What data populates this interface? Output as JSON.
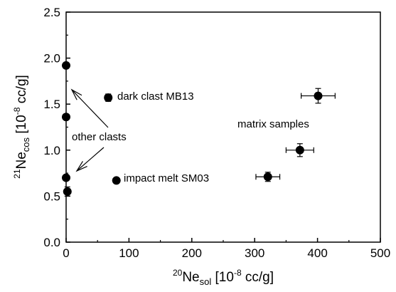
{
  "chart_data": {
    "type": "scatter",
    "xlabel": {
      "prefix": "20",
      "main": "Ne",
      "sub": "sol",
      "units_pre": " [10",
      "units_exp": "-8",
      "units_post": " cc/g]"
    },
    "ylabel": {
      "prefix": "21",
      "main": "Ne",
      "sub": "cos",
      "units_pre": " [10",
      "units_exp": "-8",
      "units_post": " cc/g]"
    },
    "xlim": [
      0,
      500
    ],
    "ylim": [
      0.0,
      2.5
    ],
    "xticks": [
      0,
      100,
      200,
      300,
      400,
      500
    ],
    "yticks": [
      0.0,
      0.5,
      1.0,
      1.5,
      2.0,
      2.5
    ],
    "xtick_labels": [
      "0",
      "100",
      "200",
      "300",
      "400",
      "500"
    ],
    "ytick_labels": [
      "0.0",
      "0.5",
      "1.0",
      "1.5",
      "2.0",
      "2.5"
    ],
    "grid": false,
    "points": [
      {
        "x": 0,
        "y": 1.92,
        "xerr": 0,
        "yerr": 0.03
      },
      {
        "x": 0,
        "y": 1.36,
        "xerr": 0,
        "yerr": 0.02
      },
      {
        "x": 0,
        "y": 0.7,
        "xerr": 0,
        "yerr": 0.02
      },
      {
        "x": 2,
        "y": 0.55,
        "xerr": 0,
        "yerr": 0.05
      },
      {
        "x": 67,
        "y": 1.57,
        "xerr": 5,
        "yerr": 0.04
      },
      {
        "x": 80,
        "y": 0.67,
        "xerr": 0,
        "yerr": 0.02
      },
      {
        "x": 321,
        "y": 0.71,
        "xerr": 19,
        "yerr": 0.05
      },
      {
        "x": 372,
        "y": 1.0,
        "xerr": 22,
        "yerr": 0.07
      },
      {
        "x": 401,
        "y": 1.59,
        "xerr": 27,
        "yerr": 0.08
      }
    ],
    "annotations": {
      "dark_clast": "dark clast MB13",
      "other_clasts": "other clasts",
      "matrix": "matrix samples",
      "impact_melt": "impact melt SM03"
    }
  }
}
